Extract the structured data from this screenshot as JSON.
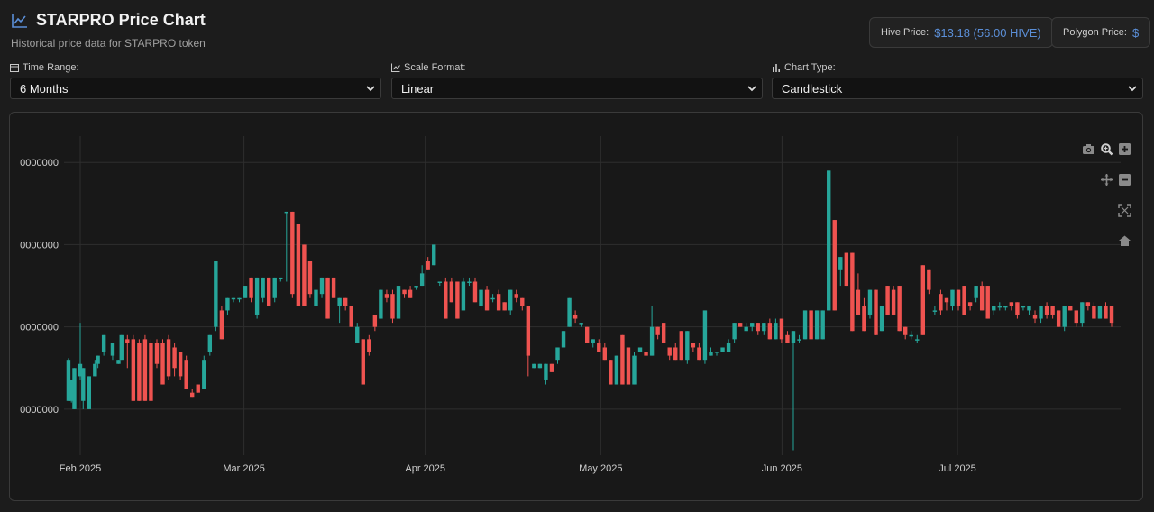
{
  "header": {
    "title": "STARPRO Price Chart",
    "subtitle": "Historical price data for STARPRO token"
  },
  "prices": {
    "hive_label": "Hive Price:",
    "hive_value": "$13.18 (56.00 HIVE)",
    "polygon_label": "Polygon Price:",
    "polygon_value": "$"
  },
  "controls": {
    "time_range_label": "Time Range:",
    "time_range_value": "6 Months",
    "scale_label": "Scale Format:",
    "scale_value": "Linear",
    "type_label": "Chart Type:",
    "type_value": "Candlestick"
  },
  "colors": {
    "up": "#26a69a",
    "down": "#ef5350",
    "accent": "#5b8fd8"
  },
  "icons": [
    "camera-icon",
    "zoom-icon",
    "zoom-in-icon",
    "pan-icon",
    "zoom-out-icon",
    "autoscale-icon",
    "reset-axes-icon"
  ],
  "chart_data": {
    "type": "candlestick",
    "title": "",
    "xlabel": "",
    "ylabel": "",
    "x_ticks": [
      "Feb 2025",
      "Mar 2025",
      "Apr 2025",
      "May 2025",
      "Jun 2025",
      "Jul 2025"
    ],
    "y_ticks": [
      "0000000",
      "0000000",
      "0000000",
      "0000000"
    ],
    "y_tick_values": [
      0.5,
      1.5,
      2.5,
      3.5
    ],
    "ylim": [
      -0.06,
      3.82
    ],
    "grid": true,
    "candles": [
      [
        -4,
        0.6,
        1.1,
        0.6,
        1.12
      ],
      [
        -3,
        0.6,
        0.85,
        0.58,
        0.85
      ],
      [
        -2,
        0.5,
        1.0,
        0.5,
        1.0
      ],
      [
        0,
        0.9,
        1.05,
        0.85,
        1.55
      ],
      [
        1,
        0.6,
        1.0,
        0.5,
        1.0
      ],
      [
        3,
        0.5,
        0.9,
        0.5,
        0.9
      ],
      [
        5,
        0.9,
        1.05,
        0.9,
        1.1
      ],
      [
        6,
        1.05,
        1.15,
        1.0,
        1.15
      ],
      [
        8,
        1.2,
        1.4,
        1.15,
        1.4
      ],
      [
        11,
        1.15,
        1.3,
        1.1,
        1.3
      ],
      [
        13,
        1.05,
        1.1,
        1.05,
        1.1
      ],
      [
        14,
        1.1,
        1.4,
        1.1,
        1.4
      ],
      [
        16,
        1.35,
        1.3,
        1.0,
        1.4
      ],
      [
        18,
        1.35,
        0.6,
        0.6,
        1.4
      ],
      [
        20,
        1.3,
        0.6,
        0.6,
        1.35
      ],
      [
        22,
        1.35,
        0.6,
        0.6,
        1.4
      ],
      [
        24,
        1.3,
        0.6,
        0.6,
        1.35
      ],
      [
        26,
        1.3,
        1.05,
        1.0,
        1.35
      ],
      [
        28,
        1.3,
        0.8,
        0.8,
        1.35
      ],
      [
        30,
        1.35,
        0.9,
        0.85,
        1.4
      ],
      [
        32,
        1.25,
        1.0,
        0.9,
        1.3
      ],
      [
        34,
        1.2,
        0.9,
        0.85,
        1.2
      ],
      [
        36,
        1.1,
        0.75,
        0.75,
        1.15
      ],
      [
        38,
        0.7,
        0.65,
        0.65,
        0.75
      ],
      [
        40,
        0.8,
        0.7,
        0.7,
        0.8
      ],
      [
        42,
        0.75,
        1.1,
        0.75,
        1.15
      ],
      [
        44,
        1.2,
        1.4,
        1.15,
        1.4
      ],
      [
        46,
        1.5,
        2.3,
        1.45,
        2.3
      ],
      [
        48,
        1.7,
        1.35,
        1.35,
        1.75
      ],
      [
        50,
        1.7,
        1.85,
        1.65,
        1.85
      ],
      [
        52,
        1.85,
        1.85,
        1.8,
        1.85
      ],
      [
        54,
        1.85,
        1.85,
        1.8,
        1.85
      ],
      [
        56,
        1.85,
        2.0,
        1.85,
        2.0
      ],
      [
        58,
        2.1,
        1.85,
        1.8,
        2.1
      ],
      [
        60,
        1.65,
        2.1,
        1.6,
        2.1
      ],
      [
        62,
        1.85,
        2.1,
        1.8,
        2.1
      ],
      [
        64,
        2.1,
        1.75,
        1.75,
        2.1
      ],
      [
        66,
        1.85,
        2.1,
        1.8,
        2.1
      ],
      [
        68,
        2.1,
        2.1,
        2.05,
        2.1
      ],
      [
        70,
        2.9,
        2.9,
        2.05,
        2.9
      ],
      [
        72,
        2.9,
        1.9,
        1.85,
        2.9
      ],
      [
        74,
        2.75,
        1.75,
        1.75,
        2.75
      ],
      [
        76,
        2.5,
        1.75,
        1.75,
        2.5
      ],
      [
        78,
        2.3,
        1.9,
        1.85,
        2.3
      ],
      [
        80,
        1.75,
        1.95,
        1.75,
        1.95
      ],
      [
        82,
        1.9,
        2.1,
        1.85,
        2.1
      ],
      [
        84,
        2.1,
        1.6,
        1.6,
        2.1
      ],
      [
        86,
        2.1,
        1.85,
        1.85,
        2.1
      ],
      [
        88,
        1.75,
        1.85,
        1.55,
        1.85
      ],
      [
        90,
        1.85,
        1.75,
        1.7,
        1.85
      ],
      [
        92,
        1.75,
        1.5,
        1.5,
        1.75
      ],
      [
        94,
        1.3,
        1.5,
        1.3,
        1.55
      ],
      [
        96,
        1.35,
        0.8,
        0.8,
        1.35
      ],
      [
        98,
        1.35,
        1.2,
        1.15,
        1.4
      ],
      [
        100,
        1.65,
        1.5,
        1.45,
        1.65
      ],
      [
        102,
        1.6,
        1.95,
        1.6,
        1.95
      ],
      [
        104,
        1.9,
        1.85,
        1.8,
        1.95
      ],
      [
        106,
        1.9,
        1.6,
        1.55,
        1.95
      ],
      [
        108,
        1.6,
        2.0,
        1.6,
        2.0
      ],
      [
        110,
        1.95,
        1.9,
        1.85,
        1.95
      ],
      [
        112,
        1.95,
        1.85,
        1.85,
        2.0
      ],
      [
        114,
        2.0,
        2.0,
        1.95,
        2.0
      ],
      [
        116,
        2.0,
        2.15,
        2.0,
        2.25
      ],
      [
        118,
        2.3,
        2.2,
        2.2,
        2.35
      ],
      [
        120,
        2.25,
        2.5,
        2.25,
        2.5
      ],
      [
        122,
        2.05,
        2.05,
        2.0,
        2.05
      ],
      [
        124,
        2.05,
        1.6,
        1.6,
        2.1
      ],
      [
        126,
        2.05,
        1.8,
        1.8,
        2.1
      ],
      [
        128,
        2.05,
        1.6,
        1.6,
        2.05
      ],
      [
        130,
        1.7,
        2.05,
        1.7,
        2.1
      ],
      [
        132,
        2.05,
        2.05,
        2.0,
        2.1
      ],
      [
        134,
        2.05,
        1.8,
        1.8,
        2.1
      ],
      [
        136,
        1.75,
        1.95,
        1.7,
        1.95
      ],
      [
        138,
        1.95,
        1.7,
        1.7,
        2.0
      ],
      [
        140,
        1.85,
        1.85,
        1.8,
        1.9
      ],
      [
        142,
        1.9,
        1.7,
        1.7,
        1.95
      ],
      [
        144,
        1.8,
        1.7,
        1.7,
        1.8
      ],
      [
        146,
        1.7,
        1.95,
        1.65,
        1.95
      ],
      [
        148,
        1.9,
        1.85,
        1.8,
        1.95
      ],
      [
        150,
        1.85,
        1.75,
        1.7,
        1.85
      ],
      [
        152,
        1.75,
        1.15,
        0.9,
        1.75
      ],
      [
        154,
        1.0,
        1.05,
        1.0,
        1.05
      ],
      [
        156,
        1.0,
        1.05,
        1.0,
        1.05
      ],
      [
        158,
        0.85,
        1.05,
        0.8,
        1.05
      ],
      [
        160,
        1.05,
        0.95,
        0.95,
        1.05
      ],
      [
        162,
        1.1,
        1.25,
        1.05,
        1.25
      ],
      [
        164,
        1.25,
        1.45,
        1.25,
        1.45
      ],
      [
        166,
        1.5,
        1.85,
        1.5,
        1.85
      ],
      [
        168,
        1.65,
        1.6,
        1.55,
        1.7
      ],
      [
        170,
        1.55,
        1.55,
        1.5,
        1.55
      ],
      [
        172,
        1.5,
        1.3,
        1.3,
        1.5
      ],
      [
        174,
        1.3,
        1.35,
        1.25,
        1.35
      ],
      [
        176,
        1.3,
        1.2,
        1.2,
        1.35
      ],
      [
        178,
        1.25,
        1.1,
        1.1,
        1.3
      ],
      [
        180,
        1.1,
        0.8,
        0.8,
        1.1
      ],
      [
        182,
        0.8,
        1.15,
        0.8,
        1.15
      ],
      [
        184,
        1.4,
        0.8,
        0.8,
        1.4
      ],
      [
        186,
        1.25,
        0.8,
        0.8,
        1.25
      ],
      [
        188,
        0.8,
        1.15,
        0.8,
        1.2
      ],
      [
        190,
        1.2,
        1.25,
        1.2,
        1.25
      ],
      [
        192,
        1.2,
        1.15,
        1.15,
        1.2
      ],
      [
        194,
        1.15,
        1.5,
        1.15,
        1.75
      ],
      [
        196,
        1.5,
        1.4,
        1.35,
        1.5
      ],
      [
        198,
        1.55,
        1.3,
        1.3,
        1.55
      ],
      [
        200,
        1.25,
        1.15,
        1.1,
        1.25
      ],
      [
        202,
        1.25,
        1.1,
        1.1,
        1.3
      ],
      [
        204,
        1.45,
        1.1,
        1.1,
        1.45
      ],
      [
        206,
        1.1,
        1.45,
        1.05,
        1.45
      ],
      [
        208,
        1.3,
        1.25,
        1.2,
        1.3
      ],
      [
        210,
        1.25,
        1.1,
        1.1,
        1.3
      ],
      [
        212,
        1.1,
        1.7,
        1.05,
        1.7
      ],
      [
        214,
        1.15,
        1.2,
        1.15,
        1.25
      ],
      [
        216,
        1.2,
        1.2,
        1.15,
        1.2
      ],
      [
        218,
        1.2,
        1.25,
        1.2,
        1.25
      ],
      [
        220,
        1.2,
        1.3,
        1.2,
        1.35
      ],
      [
        222,
        1.35,
        1.55,
        1.3,
        1.55
      ],
      [
        224,
        1.55,
        1.5,
        1.5,
        1.55
      ],
      [
        226,
        1.45,
        1.5,
        1.45,
        1.55
      ],
      [
        228,
        1.5,
        1.55,
        1.45,
        1.55
      ],
      [
        230,
        1.55,
        1.45,
        1.4,
        1.55
      ],
      [
        232,
        1.45,
        1.55,
        1.4,
        1.55
      ],
      [
        234,
        1.55,
        1.35,
        1.35,
        1.6
      ],
      [
        236,
        1.35,
        1.55,
        1.35,
        1.6
      ],
      [
        238,
        1.6,
        1.35,
        1.3,
        1.6
      ],
      [
        240,
        1.4,
        1.3,
        1.3,
        1.45
      ],
      [
        242,
        1.3,
        1.45,
        0.0,
        1.45
      ],
      [
        244,
        1.35,
        1.35,
        1.3,
        1.4
      ],
      [
        246,
        1.35,
        1.7,
        1.35,
        1.7
      ],
      [
        248,
        1.7,
        1.35,
        1.35,
        1.7
      ],
      [
        250,
        1.35,
        1.7,
        1.35,
        1.7
      ],
      [
        252,
        1.35,
        1.7,
        1.35,
        1.7
      ],
      [
        254,
        1.7,
        3.4,
        1.7,
        3.4
      ],
      [
        256,
        2.8,
        1.7,
        1.7,
        2.8
      ],
      [
        258,
        2.2,
        2.35,
        2.0,
        2.35
      ],
      [
        260,
        2.4,
        2.0,
        2.0,
        2.4
      ],
      [
        262,
        2.4,
        1.45,
        1.45,
        2.4
      ],
      [
        264,
        1.95,
        1.65,
        1.65,
        2.15
      ],
      [
        266,
        1.75,
        1.45,
        1.45,
        1.85
      ],
      [
        268,
        1.65,
        1.95,
        1.6,
        1.95
      ],
      [
        270,
        1.95,
        1.4,
        1.4,
        1.95
      ],
      [
        272,
        1.45,
        1.75,
        1.45,
        1.75
      ],
      [
        274,
        2.0,
        1.65,
        1.65,
        2.0
      ],
      [
        276,
        1.95,
        1.65,
        1.65,
        2.0
      ],
      [
        278,
        2.0,
        1.45,
        1.45,
        2.0
      ],
      [
        280,
        1.5,
        1.4,
        1.35,
        1.5
      ],
      [
        282,
        1.4,
        1.4,
        1.35,
        1.45
      ],
      [
        284,
        1.35,
        1.35,
        1.3,
        1.4
      ],
      [
        286,
        2.25,
        1.4,
        1.4,
        2.25
      ],
      [
        288,
        2.2,
        1.95,
        1.9,
        2.2
      ],
      [
        290,
        1.7,
        1.7,
        1.65,
        1.75
      ],
      [
        292,
        1.9,
        1.7,
        1.65,
        1.95
      ],
      [
        294,
        1.85,
        1.8,
        1.7,
        1.85
      ],
      [
        296,
        1.75,
        1.95,
        1.7,
        1.95
      ],
      [
        298,
        1.95,
        1.75,
        1.7,
        1.95
      ],
      [
        300,
        2.0,
        1.65,
        1.65,
        2.0
      ],
      [
        302,
        1.8,
        1.75,
        1.7,
        1.8
      ],
      [
        304,
        1.85,
        2.0,
        1.8,
        2.0
      ],
      [
        306,
        2.0,
        1.7,
        1.7,
        2.05
      ],
      [
        308,
        2.0,
        1.6,
        1.6,
        2.0
      ],
      [
        310,
        1.7,
        1.75,
        1.65,
        1.75
      ],
      [
        312,
        1.75,
        1.75,
        1.7,
        1.8
      ],
      [
        314,
        1.75,
        1.75,
        1.7,
        1.75
      ],
      [
        316,
        1.8,
        1.75,
        1.7,
        1.8
      ],
      [
        318,
        1.8,
        1.65,
        1.6,
        1.8
      ],
      [
        320,
        1.75,
        1.75,
        1.7,
        1.75
      ],
      [
        322,
        1.7,
        1.75,
        1.65,
        1.75
      ],
      [
        324,
        1.65,
        1.6,
        1.55,
        1.7
      ],
      [
        326,
        1.6,
        1.75,
        1.55,
        1.75
      ],
      [
        328,
        1.75,
        1.65,
        1.6,
        1.8
      ],
      [
        330,
        1.75,
        1.65,
        1.6,
        1.75
      ],
      [
        332,
        1.7,
        1.5,
        1.5,
        1.7
      ],
      [
        334,
        1.5,
        1.75,
        1.45,
        1.75
      ],
      [
        336,
        1.75,
        1.7,
        1.7,
        1.75
      ],
      [
        338,
        1.7,
        1.55,
        1.5,
        1.7
      ],
      [
        340,
        1.55,
        1.8,
        1.5,
        1.8
      ],
      [
        342,
        1.8,
        1.75,
        1.7,
        1.8
      ],
      [
        344,
        1.75,
        1.6,
        1.6,
        1.8
      ],
      [
        346,
        1.6,
        1.75,
        1.6,
        1.75
      ],
      [
        348,
        1.75,
        1.6,
        1.6,
        1.8
      ],
      [
        350,
        1.75,
        1.55,
        1.5,
        1.75
      ]
    ]
  }
}
